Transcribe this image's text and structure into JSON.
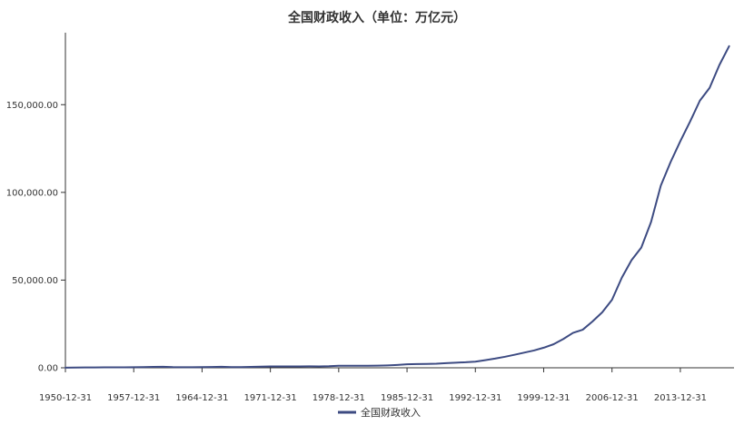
{
  "chart_data": {
    "type": "line",
    "title": "全国财政收入（单位：万亿元）",
    "xlabel": "",
    "ylabel": "",
    "x_tick_labels": [
      "1950-12-31",
      "1957-12-31",
      "1964-12-31",
      "1971-12-31",
      "1978-12-31",
      "1985-12-31",
      "1992-12-31",
      "1999-12-31",
      "2006-12-31",
      "2013-12-31"
    ],
    "y_tick_labels": [
      "0.00",
      "50,000.00",
      "100,000.00",
      "150,000.00"
    ],
    "y_ticks": [
      0,
      50000,
      100000,
      150000
    ],
    "ylim": [
      0,
      190000
    ],
    "xlim": [
      1950,
      2018.5
    ],
    "grid": false,
    "legend": "bottom-center",
    "series": [
      {
        "name": "全国财政收入",
        "color": "#3d4b82",
        "x": [
          1950,
          1951,
          1952,
          1953,
          1954,
          1955,
          1956,
          1957,
          1958,
          1959,
          1960,
          1961,
          1962,
          1963,
          1964,
          1965,
          1966,
          1967,
          1968,
          1969,
          1970,
          1971,
          1972,
          1973,
          1974,
          1975,
          1976,
          1977,
          1978,
          1979,
          1980,
          1981,
          1982,
          1983,
          1984,
          1985,
          1986,
          1987,
          1988,
          1989,
          1990,
          1991,
          1992,
          1993,
          1994,
          1995,
          1996,
          1997,
          1998,
          1999,
          2000,
          2001,
          2002,
          2003,
          2004,
          2005,
          2006,
          2007,
          2008,
          2009,
          2010,
          2011,
          2012,
          2013,
          2014,
          2015,
          2016,
          2017,
          2018
        ],
        "y": [
          62,
          125,
          174,
          213,
          245,
          250,
          280,
          303,
          379,
          487,
          572,
          356,
          313,
          342,
          400,
          473,
          558,
          419,
          361,
          526,
          662,
          744,
          767,
          809,
          783,
          815,
          776,
          874,
          1132,
          1146,
          1160,
          1176,
          1212,
          1367,
          1643,
          2005,
          2122,
          2199,
          2357,
          2665,
          2937,
          3149,
          3483,
          4349,
          5218,
          6242,
          7408,
          8651,
          9876,
          11444,
          13395,
          16386,
          19904,
          21715,
          26396,
          31649,
          38760,
          51322,
          61330,
          68518,
          83102,
          103874,
          117254,
          129210,
          140370,
          152269,
          159605,
          172593,
          183360
        ]
      }
    ]
  }
}
